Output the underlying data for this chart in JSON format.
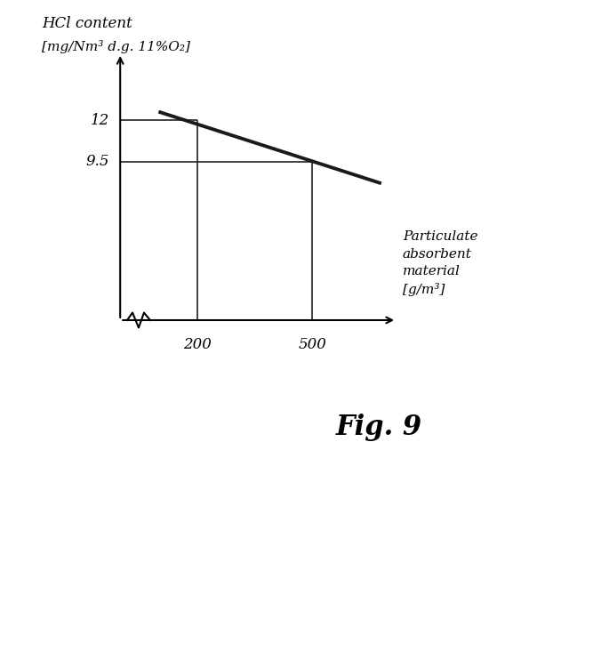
{
  "title": "Fig. 9",
  "ylabel_line1": "HCl content",
  "ylabel_line2": "[mg/Nm³ d.g. 11%O₂]",
  "xlabel_line1": "Particulate",
  "xlabel_line2": "absorbent",
  "xlabel_line3": "material",
  "xlabel_line4": "[g/m³]",
  "line_x": [
    100,
    680
  ],
  "line_y": [
    12.5,
    8.2
  ],
  "ref_x1": 200,
  "ref_y1": 12.0,
  "ref_x2": 500,
  "ref_y2": 9.5,
  "ytick_labels": [
    "12",
    "9.5"
  ],
  "ytick_vals": [
    12.0,
    9.5
  ],
  "xtick_labels": [
    "200",
    "500"
  ],
  "xtick_vals": [
    200,
    500
  ],
  "xlim": [
    0,
    720
  ],
  "ylim": [
    0,
    16
  ],
  "bg_color": "#ffffff",
  "line_color": "#1a1a1a",
  "ref_line_color": "#222222",
  "fig9_fontsize": 22
}
